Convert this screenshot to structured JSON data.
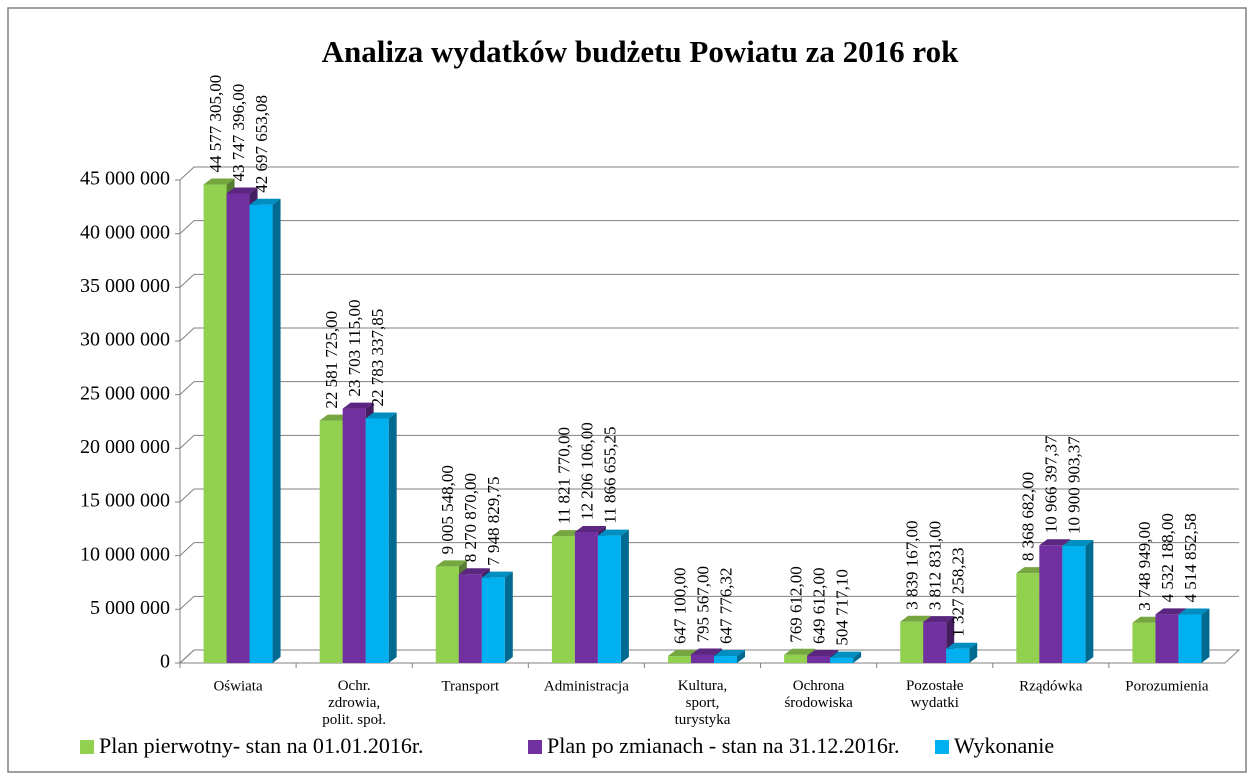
{
  "chart_data": {
    "type": "bar3d",
    "title": "Analiza wydatków  budżetu Powiatu za 2016 rok",
    "categories": [
      "Oświata",
      "Ochr.\nzdrowia,\npolit. społ.",
      "Transport",
      "Administracja",
      "Kultura,\nsport,\nturystyka",
      "Ochrona\nśrodowiska",
      "Pozostałe\nwydatki",
      "Rządówka",
      "Porozumienia"
    ],
    "series": [
      {
        "name": "Plan pierwotny- stan na 01.01.2016r.",
        "color": "#92d050",
        "values": [
          44577305,
          22581725,
          9005548,
          11821770,
          647100,
          769612,
          3839167,
          8368682,
          3748949
        ],
        "value_labels": [
          "44 577 305,00",
          "22 581 725,00",
          "9 005 548,00",
          "11 821 770,00",
          "647 100,00",
          "769 612,00",
          "3 839 167,00",
          "8 368 682,00",
          "3 748 949,00"
        ]
      },
      {
        "name": "Plan po zmianach - stan na 31.12.2016r.",
        "color": "#7030a0",
        "values": [
          43747396,
          23703115,
          8270870,
          12206106,
          795567,
          649612,
          3812831,
          10966397.37,
          4532188
        ],
        "value_labels": [
          "43 747 396,00",
          "23 703 115,00",
          "8 270 870,00",
          "12 206 106,00",
          "795 567,00",
          "649 612,00",
          "3 812 831,00",
          "10 966 397,37",
          "4 532 188,00"
        ]
      },
      {
        "name": "Wykonanie",
        "color": "#00b0f0",
        "values": [
          42697653.08,
          22783337.85,
          7948829.75,
          11866655.25,
          647776.32,
          504717.1,
          1327258.23,
          10900903.37,
          4514852.58
        ],
        "value_labels": [
          "42 697 653,08",
          "22 783 337,85",
          "7 948 829,75",
          "11 866 655,25",
          "647 776,32",
          "504 717,10",
          "1 327 258,23",
          "10 900 903,37",
          "4 514 852,58"
        ]
      }
    ],
    "ylim": [
      0,
      45000000
    ],
    "yticks": [
      {
        "value": 0,
        "label": "0"
      },
      {
        "value": 5000000,
        "label": "5 000 000"
      },
      {
        "value": 10000000,
        "label": "10 000 000"
      },
      {
        "value": 15000000,
        "label": "15 000 000"
      },
      {
        "value": 20000000,
        "label": "20 000 000"
      },
      {
        "value": 25000000,
        "label": "25 000 000"
      },
      {
        "value": 30000000,
        "label": "30 000 000"
      },
      {
        "value": 35000000,
        "label": "35 000 000"
      },
      {
        "value": 40000000,
        "label": "40 000 000"
      },
      {
        "value": 45000000,
        "label": "45 000 000"
      }
    ],
    "grid": true
  }
}
